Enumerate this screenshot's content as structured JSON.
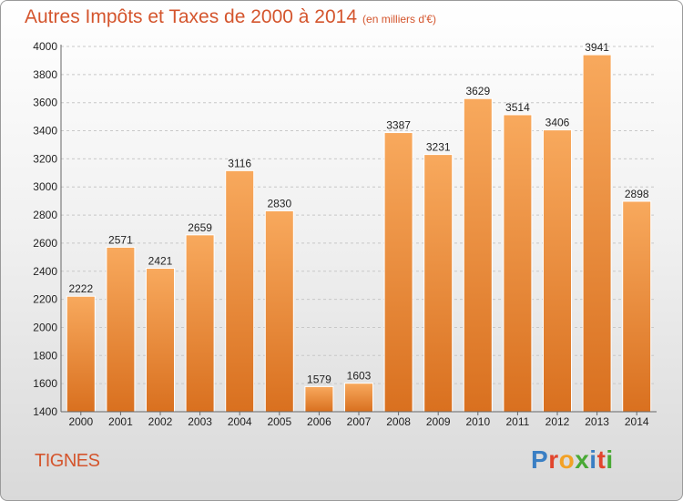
{
  "header": {
    "title": "Autres Impôts et Taxes de 2000 à 2014",
    "subtitle": "(en milliers d'€)"
  },
  "footer": {
    "place": "TIGNES",
    "logo": {
      "text": "Proxiti",
      "colors": [
        "#3a7fc4",
        "#e2452d",
        "#f2a125",
        "#49a935",
        "#3a7fc4",
        "#e2452d",
        "#49a935"
      ]
    }
  },
  "colors": {
    "bar_light": "#f8a95d",
    "bar_dark": "#d9701f",
    "grid": "#c8c8c8",
    "title": "#d4552d"
  },
  "chart_data": {
    "type": "bar",
    "categories": [
      "2000",
      "2001",
      "2002",
      "2003",
      "2004",
      "2005",
      "2006",
      "2007",
      "2008",
      "2009",
      "2010",
      "2011",
      "2012",
      "2013",
      "2014"
    ],
    "values": [
      2222,
      2571,
      2421,
      2659,
      3116,
      2830,
      1579,
      1603,
      3387,
      3231,
      3629,
      3514,
      3406,
      3941,
      2898
    ],
    "ylim": [
      1400,
      4000
    ],
    "yticks": [
      1400,
      1600,
      1800,
      2000,
      2200,
      2400,
      2600,
      2800,
      3000,
      3200,
      3400,
      3600,
      3800,
      4000
    ],
    "grid": true,
    "title": "Autres Impôts et Taxes de 2000 à 2014",
    "xlabel": "",
    "ylabel": ""
  }
}
